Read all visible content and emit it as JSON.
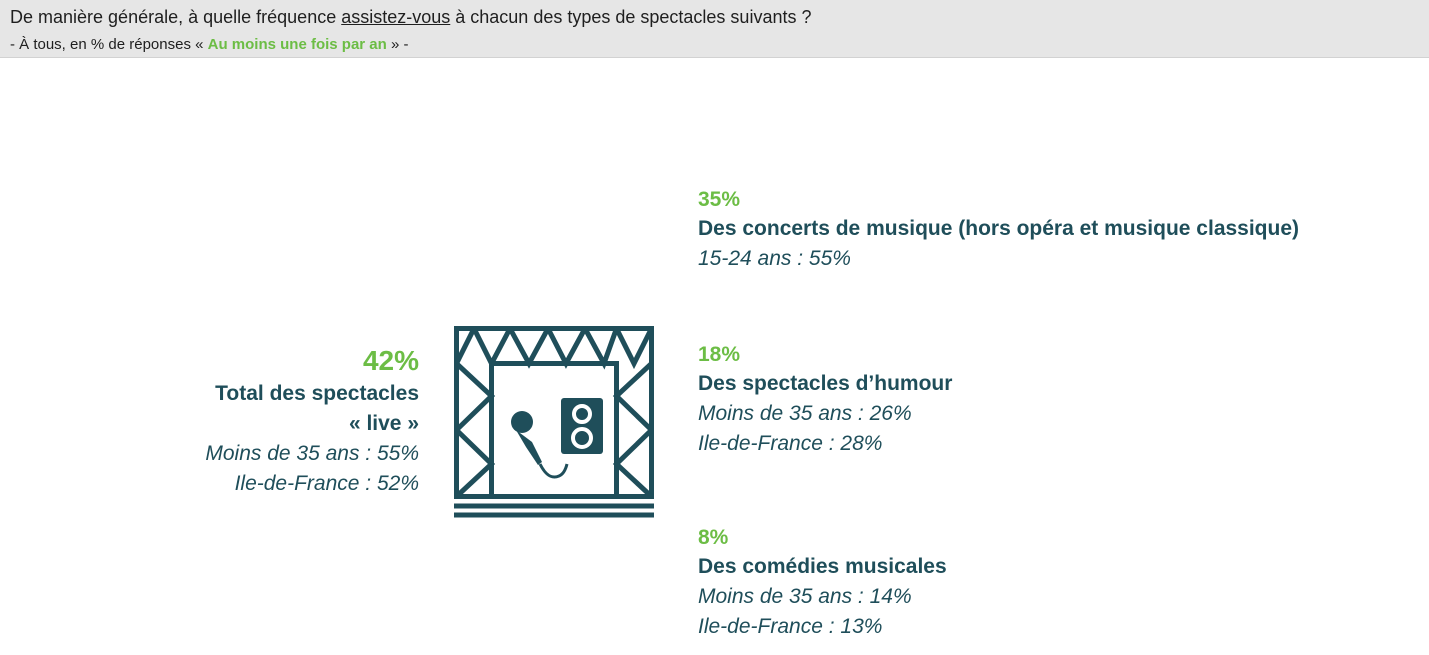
{
  "header": {
    "question_pre": "De manière générale, à quelle fréquence ",
    "question_underlined": "assistez-vous",
    "question_post": " à chacun des types de spectacles suivants ?",
    "sub_pre": "- À tous, en % de réponses « ",
    "sub_highlight": "Au moins une fois par an",
    "sub_post": " » -"
  },
  "total": {
    "percent": "42%",
    "label_line1": "Total des spectacles",
    "label_line2": "« live »",
    "detail1": "Moins de 35 ans : 55%",
    "detail2": "Ile-de-France : 52%"
  },
  "items": [
    {
      "percent": "35%",
      "label": "Des concerts de musique (hors opéra et musique classique)",
      "detail1": "15-24 ans : 55%"
    },
    {
      "percent": "18%",
      "label": "Des spectacles d’humour",
      "detail1": "Moins de 35 ans : 26%",
      "detail2": "Ile-de-France : 28%"
    },
    {
      "percent": "8%",
      "label": "Des comédies musicales",
      "detail1": "Moins de 35 ans : 14%",
      "detail2": "Ile-de-France : 13%"
    }
  ],
  "colors": {
    "accent_green": "#6cbd45",
    "dark_teal": "#1f4e5a",
    "header_bg": "#e6e6e6"
  },
  "icons": [
    "stage-icon",
    "microphone-icon",
    "speaker-icon"
  ]
}
